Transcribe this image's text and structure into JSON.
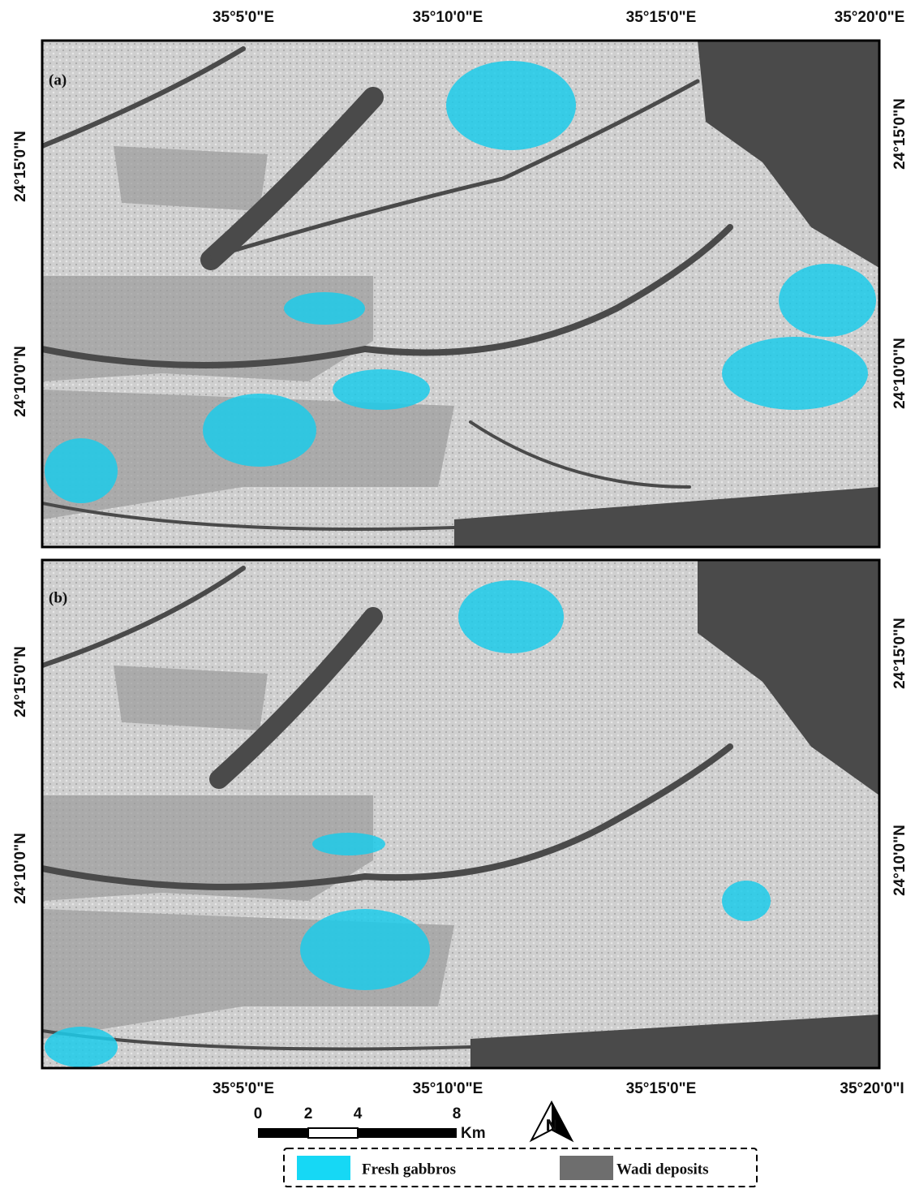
{
  "panels": [
    {
      "label": "(a)"
    },
    {
      "label": "(b)"
    }
  ],
  "longitude_labels": {
    "top": [
      "35°5'0\"E",
      "35°10'0\"E",
      "35°15'0\"E",
      "35°20'0\"E"
    ],
    "bottom": [
      "35°5'0\"E",
      "35°10'0\"E",
      "35°15'0\"E",
      "35°20'0\"I"
    ]
  },
  "latitude_labels": [
    "24°15'0\"N",
    "24°10'0\"N"
  ],
  "scale_bar": {
    "ticks": [
      "0",
      "2",
      "4",
      "8"
    ],
    "unit": "Km"
  },
  "north_arrow": "N",
  "legend": [
    {
      "label": "Fresh gabbros",
      "color": "#16d8f5"
    },
    {
      "label": "Wadi deposits",
      "color": "#6e6e6e"
    }
  ]
}
